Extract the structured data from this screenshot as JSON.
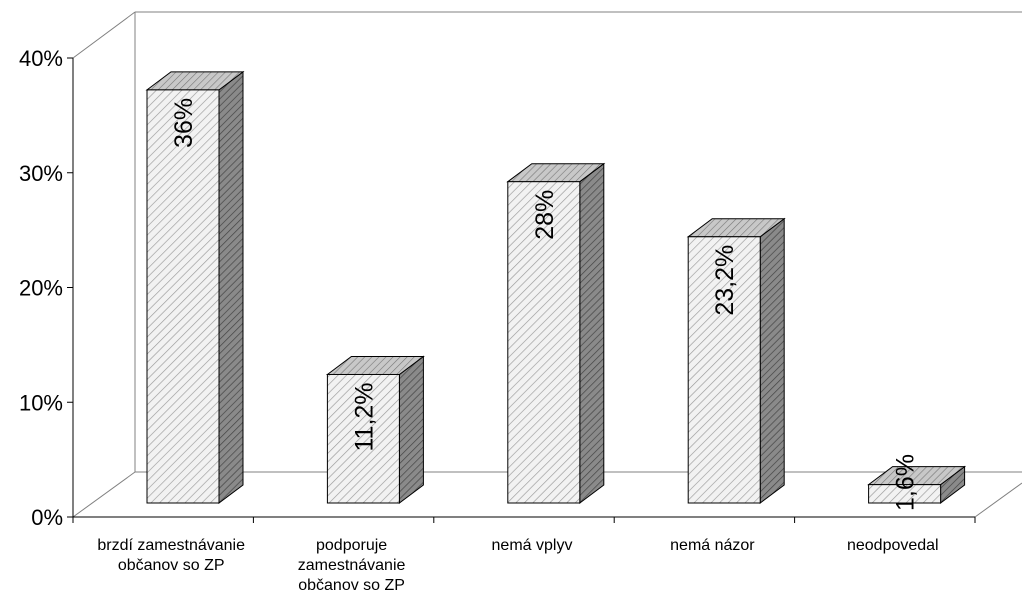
{
  "chart_data": {
    "type": "bar3d",
    "categories": [
      "brzdí zamestnávanie občanov so ZP",
      "podporuje zamestnávanie občanov so ZP",
      "nemá vplyv",
      "nemá názor",
      "neodpovedal"
    ],
    "values": [
      36,
      11.2,
      28,
      23.2,
      1.6
    ],
    "value_labels": [
      "36%",
      "11,2%",
      "28%",
      "23,2%",
      "1,6%"
    ],
    "ylim": [
      0,
      40
    ],
    "yticks": [
      {
        "value": 0,
        "label": "0%"
      },
      {
        "value": 10,
        "label": "10%"
      },
      {
        "value": 20,
        "label": "20%"
      },
      {
        "value": 30,
        "label": "30%"
      },
      {
        "value": 40,
        "label": "40%"
      }
    ],
    "grid": false
  }
}
